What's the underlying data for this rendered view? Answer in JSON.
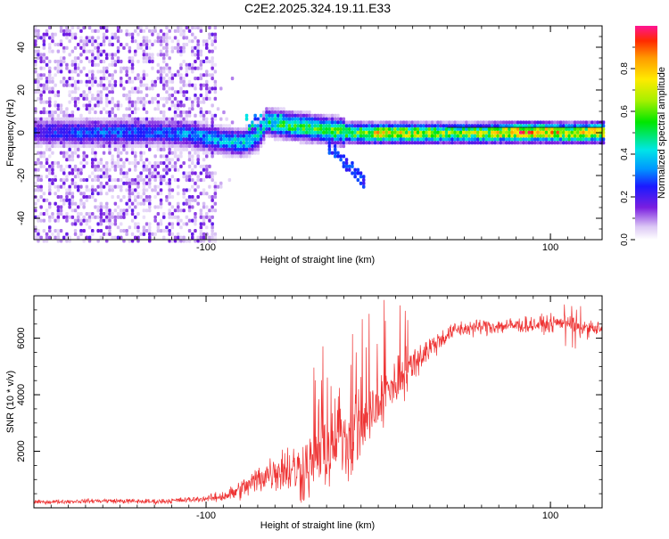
{
  "title": "C2E2.2025.324.19.11.E33",
  "chart_data": [
    {
      "type": "heatmap",
      "name": "spectrogram",
      "xlabel": "Height of straight line (km)",
      "ylabel": "Frequency (Hz)",
      "xlim": [
        -200,
        130
      ],
      "ylim": [
        -50,
        50
      ],
      "xticks": [
        -100,
        100
      ],
      "x_minor_step": 10,
      "yticks": [
        -40,
        -20,
        0,
        20,
        40
      ],
      "y_minor_step": 5,
      "colorbar": {
        "label": "Normalized spectral amplitude",
        "range": [
          0.0,
          1.0
        ],
        "ticks": [
          0.0,
          0.2,
          0.4,
          0.6,
          0.8
        ],
        "tick_labels": [
          "0.0",
          "0.2",
          "0.4",
          "0.6",
          "0.8"
        ]
      },
      "ridge_x": [
        -195,
        -170,
        -150,
        -130,
        -110,
        -90,
        -80,
        -70,
        -66,
        -60,
        -50,
        -40,
        -30,
        -20,
        -10,
        0,
        20,
        40,
        60,
        80,
        100,
        110,
        130
      ],
      "ridge_y": [
        1,
        1,
        1,
        1,
        0,
        -3,
        -4,
        -1,
        6,
        5,
        4,
        3,
        2,
        1,
        0.5,
        0.5,
        0.5,
        0.5,
        0.5,
        1,
        1,
        0.5,
        1
      ],
      "ridge_amp": [
        0.25,
        0.3,
        0.3,
        0.28,
        0.35,
        0.4,
        0.42,
        0.4,
        0.45,
        0.5,
        0.55,
        0.55,
        0.55,
        0.6,
        0.65,
        0.75,
        0.7,
        0.65,
        0.68,
        0.85,
        0.8,
        0.75,
        0.85
      ]
    },
    {
      "type": "line",
      "name": "snr",
      "xlabel": "Height of straight line (km)",
      "ylabel": "SNR (10 * v/v)",
      "xlim": [
        -200,
        130
      ],
      "ylim": [
        0,
        7500
      ],
      "xticks": [
        -100,
        100
      ],
      "x_minor_step": 10,
      "yticks": [
        2000,
        4000,
        6000
      ],
      "y_minor_step": 500,
      "color": "#ee3333",
      "trend_x": [
        -200,
        -160,
        -130,
        -110,
        -95,
        -85,
        -75,
        -65,
        -55,
        -45,
        -35,
        -25,
        -15,
        -5,
        5,
        15,
        25,
        35,
        45,
        60,
        80,
        100,
        110,
        115,
        130
      ],
      "trend_y": [
        200,
        250,
        220,
        280,
        350,
        500,
        800,
        1200,
        1400,
        1300,
        1800,
        2200,
        2600,
        3200,
        4000,
        4800,
        5400,
        5900,
        6300,
        6400,
        6450,
        6500,
        6600,
        6400,
        6300
      ],
      "noise_x": [
        -200,
        -100,
        -80,
        -60,
        -40,
        -20,
        0,
        20,
        40,
        130
      ],
      "noise_y": [
        60,
        90,
        300,
        600,
        1100,
        1300,
        1000,
        600,
        250,
        250
      ]
    }
  ]
}
